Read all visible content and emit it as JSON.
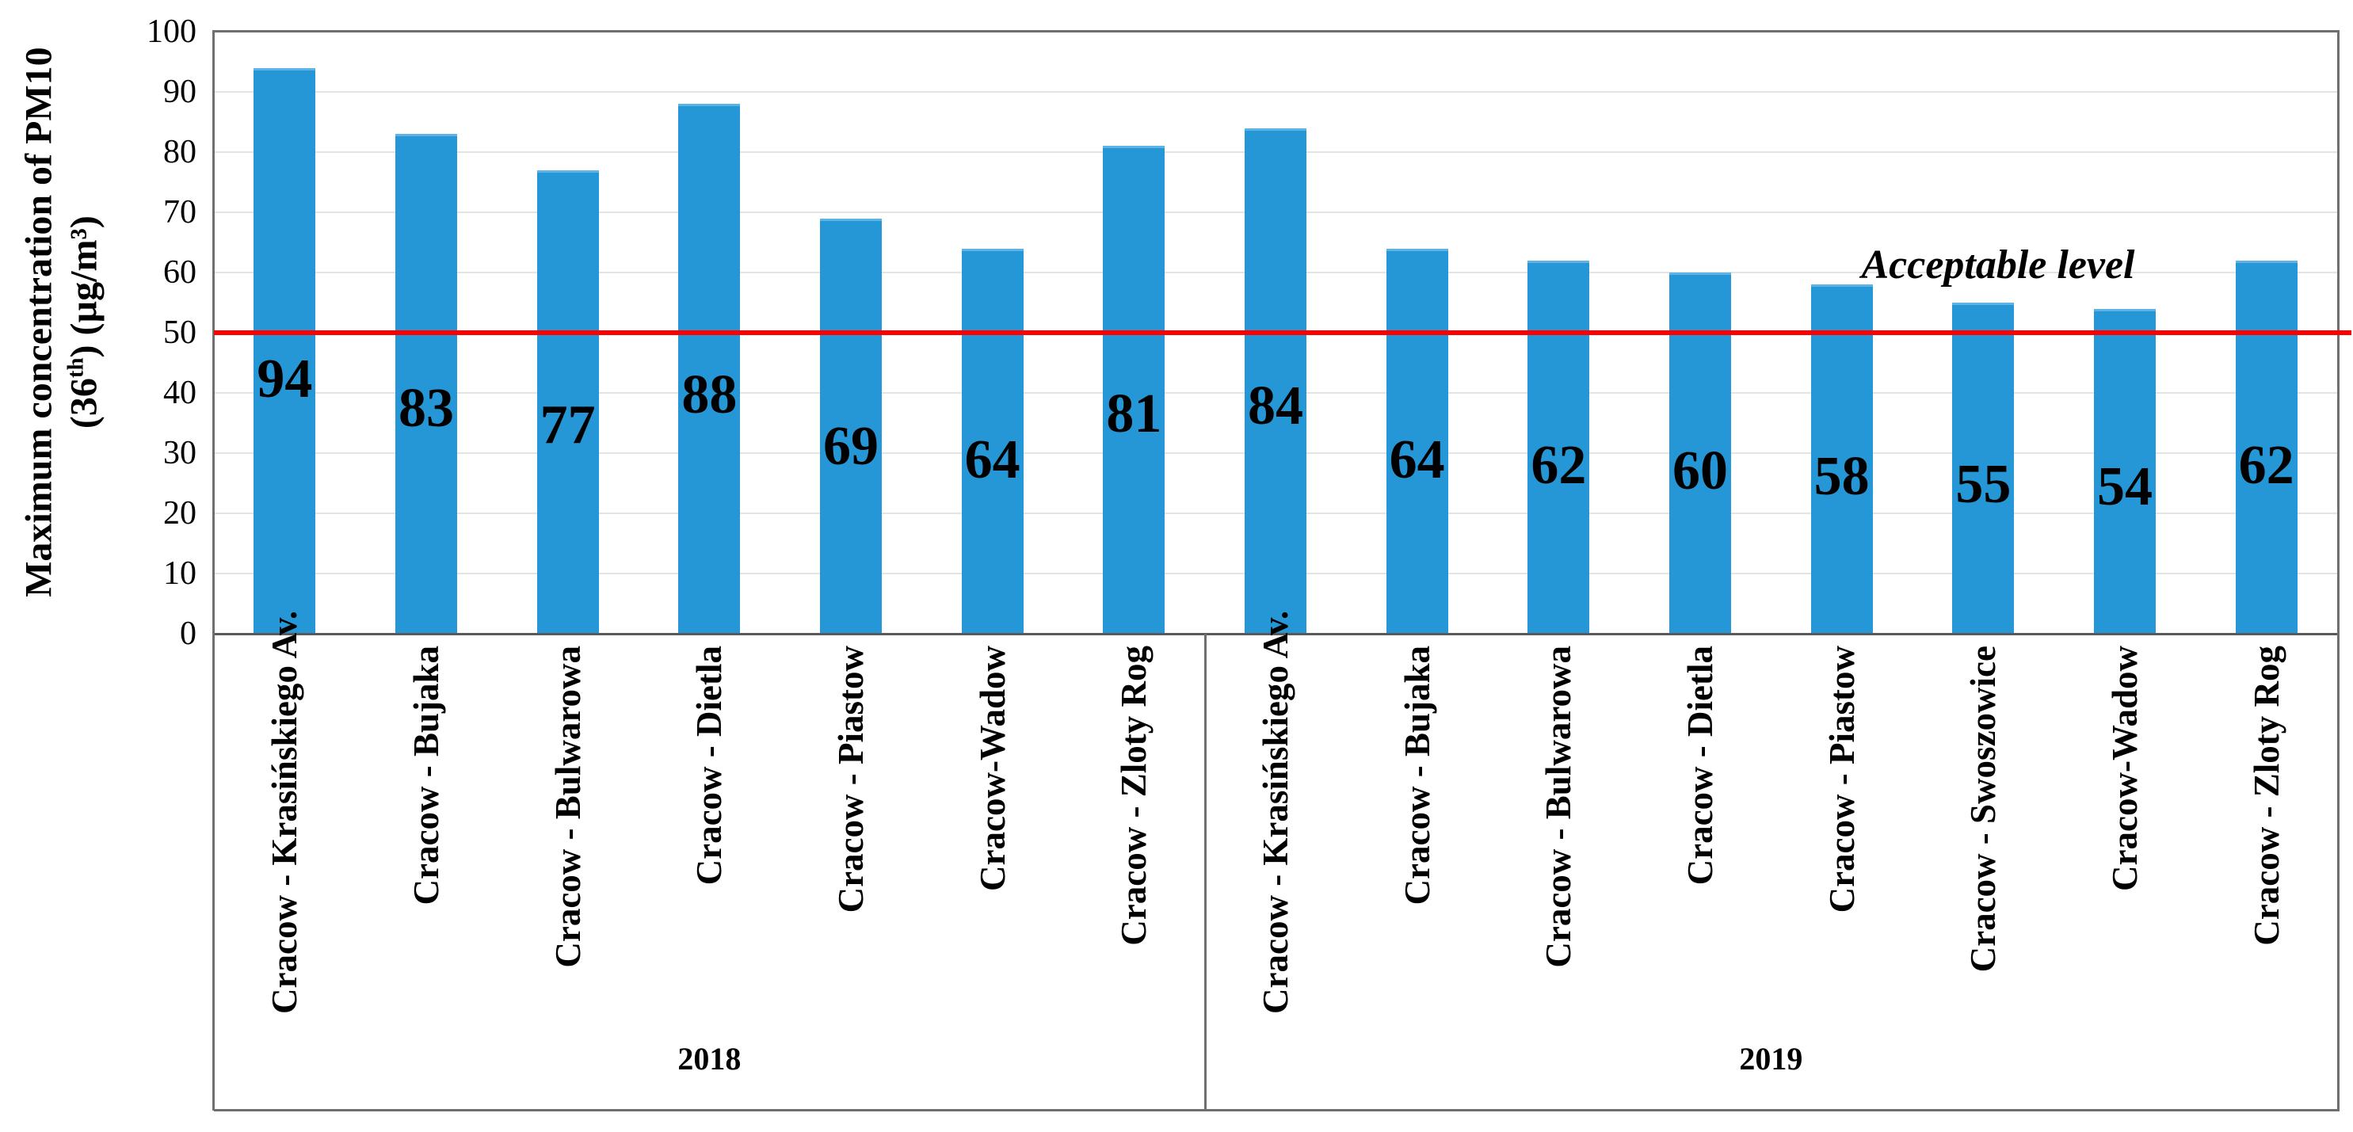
{
  "chart_data": {
    "type": "bar",
    "title": "",
    "ylabel_plain": "Maximum concentration of PM10 (36th) (µg/m³)",
    "ylabel_line1": "Maximum concentration of  PM10",
    "ylabel_line2": {
      "pre": "(36",
      "sup": "th",
      "post": ") (µg/m³)"
    },
    "ylim": [
      0,
      100
    ],
    "ytick_step": 10,
    "grid": "horizontal",
    "legend": "none",
    "bar_color": "#2697d6",
    "bar_top_edge_color": "#5cb3e4",
    "acceptable_level": {
      "label": "Acceptable level",
      "value": 50,
      "line_color": "#ff0000"
    },
    "groups": [
      {
        "label": "2018",
        "categories": [
          "Cracow - Krasińskiego Av.",
          "Cracow - Bujaka",
          "Cracow - Bulwarowa",
          "Cracow - Dietla",
          "Cracow - Piastow",
          "Cracow-Wadow",
          "Cracow - Zloty Rog"
        ],
        "values": [
          94,
          83,
          77,
          88,
          69,
          64,
          81
        ]
      },
      {
        "label": "2019",
        "categories": [
          "Cracow - Krasińskiego Av.",
          "Cracow - Bujaka",
          "Cracow - Bulwarowa",
          "Cracow - Dietla",
          "Cracow - Piastow",
          "Cracow - Swoszowice",
          "Cracow-Wadow",
          "Cracow - Zloty Rog"
        ],
        "values": [
          84,
          64,
          62,
          60,
          58,
          55,
          54,
          62
        ]
      }
    ]
  },
  "colors": {
    "axis_line": "#6f6f6f",
    "gridline": "#e4e4e4",
    "text": "#000000",
    "background": "#ffffff"
  }
}
